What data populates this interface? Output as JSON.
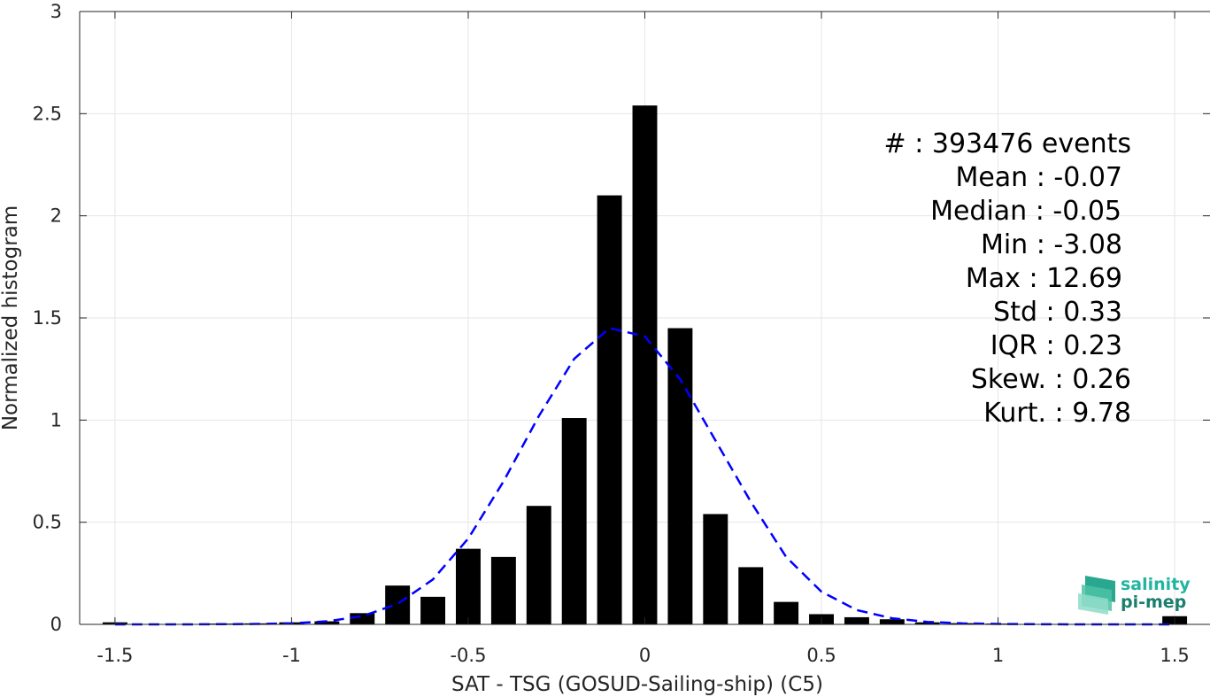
{
  "chart_data": {
    "type": "bar",
    "xlabel": "SAT - TSG (GOSUD-Sailing-ship) (C5)",
    "ylabel": "Normalized histogram",
    "xlim": [
      -1.6,
      1.6
    ],
    "ylim": [
      0,
      3
    ],
    "xticks": [
      -1.5,
      -1,
      -0.5,
      0,
      0.5,
      1,
      1.5
    ],
    "xtick_labels": [
      "-1.5",
      "-1",
      "-0.5",
      "0",
      "0.5",
      "1",
      "1.5"
    ],
    "yticks": [
      0,
      0.5,
      1,
      1.5,
      2,
      2.5,
      3
    ],
    "ytick_labels": [
      "0",
      "0.5",
      "1",
      "1.5",
      "2",
      "2.5",
      "3"
    ],
    "grid": true,
    "bar_width": 0.07,
    "bins": [
      {
        "x": -1.5,
        "value": 0.01
      },
      {
        "x": -1.4,
        "value": 0.0
      },
      {
        "x": -1.3,
        "value": 0.0
      },
      {
        "x": -1.2,
        "value": 0.004
      },
      {
        "x": -1.1,
        "value": 0.005
      },
      {
        "x": -1.0,
        "value": 0.01
      },
      {
        "x": -0.9,
        "value": 0.015
      },
      {
        "x": -0.8,
        "value": 0.055
      },
      {
        "x": -0.7,
        "value": 0.19
      },
      {
        "x": -0.6,
        "value": 0.135
      },
      {
        "x": -0.5,
        "value": 0.37
      },
      {
        "x": -0.4,
        "value": 0.33
      },
      {
        "x": -0.3,
        "value": 0.58
      },
      {
        "x": -0.2,
        "value": 1.01
      },
      {
        "x": -0.1,
        "value": 2.1
      },
      {
        "x": 0.0,
        "value": 2.54
      },
      {
        "x": 0.1,
        "value": 1.45
      },
      {
        "x": 0.2,
        "value": 0.54
      },
      {
        "x": 0.3,
        "value": 0.28
      },
      {
        "x": 0.4,
        "value": 0.11
      },
      {
        "x": 0.5,
        "value": 0.05
      },
      {
        "x": 0.6,
        "value": 0.035
      },
      {
        "x": 0.7,
        "value": 0.025
      },
      {
        "x": 0.8,
        "value": 0.01
      },
      {
        "x": 0.9,
        "value": 0.006
      },
      {
        "x": 1.0,
        "value": 0.004
      },
      {
        "x": 1.1,
        "value": 0.002
      },
      {
        "x": 1.2,
        "value": 0.002
      },
      {
        "x": 1.3,
        "value": 0.001
      },
      {
        "x": 1.4,
        "value": 0.001
      },
      {
        "x": 1.5,
        "value": 0.04
      }
    ],
    "fit_curve": {
      "style": "dashed",
      "color": "#0000ff",
      "x": [
        -1.5,
        -1.4,
        -1.3,
        -1.2,
        -1.1,
        -1.0,
        -0.9,
        -0.8,
        -0.7,
        -0.6,
        -0.5,
        -0.4,
        -0.3,
        -0.2,
        -0.1,
        0.0,
        0.1,
        0.2,
        0.3,
        0.4,
        0.5,
        0.6,
        0.7,
        0.8,
        0.9,
        1.0,
        1.1,
        1.2,
        1.3,
        1.4,
        1.5
      ],
      "y": [
        0.0,
        0.0,
        0.0,
        0.001,
        0.002,
        0.005,
        0.015,
        0.04,
        0.1,
        0.22,
        0.42,
        0.7,
        1.02,
        1.3,
        1.45,
        1.41,
        1.2,
        0.9,
        0.6,
        0.33,
        0.16,
        0.07,
        0.03,
        0.012,
        0.005,
        0.002,
        0.001,
        0.0,
        0.0,
        0.0,
        0.0
      ]
    },
    "stats": [
      "#  : 393476 events",
      "Mean : -0.07",
      "Median : -0.05",
      "Min : -3.08",
      "Max : 12.69",
      "Std : 0.33",
      "IQR : 0.23",
      "Skew. : 0.26",
      "Kurt. : 9.78"
    ]
  },
  "logo": {
    "line1": "salinity",
    "line2": "pi-mep",
    "color1": "#22b5a0",
    "color2": "#1a7f6e"
  },
  "colors": {
    "bars": "#000000",
    "grid": "#e6e6e6",
    "axis": "#262626"
  }
}
